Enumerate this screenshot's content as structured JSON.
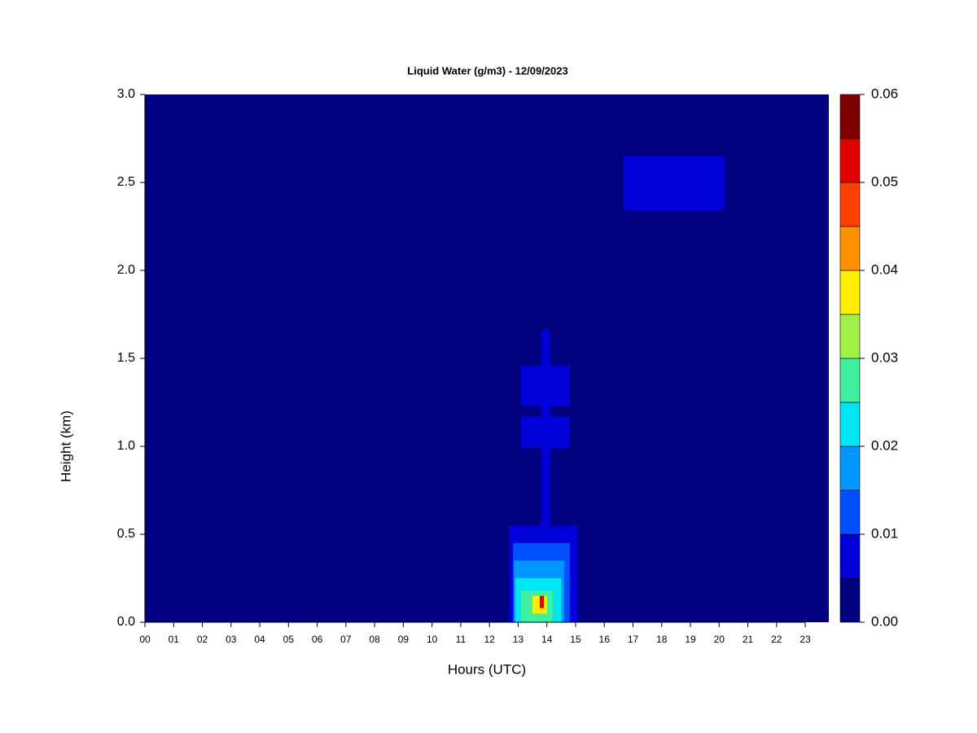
{
  "chart_data": {
    "type": "heatmap",
    "title": "Liquid Water (g/m3) - 12/09/2023",
    "xlabel": "Hours (UTC)",
    "ylabel": "Height (km)",
    "xlim": [
      0,
      23.82
    ],
    "ylim": [
      0,
      3
    ],
    "xticks": [
      {
        "value": 0,
        "label": "00"
      },
      {
        "value": 1,
        "label": "01"
      },
      {
        "value": 2,
        "label": "02"
      },
      {
        "value": 3,
        "label": "03"
      },
      {
        "value": 4,
        "label": "04"
      },
      {
        "value": 5,
        "label": "05"
      },
      {
        "value": 6,
        "label": "06"
      },
      {
        "value": 7,
        "label": "07"
      },
      {
        "value": 8,
        "label": "08"
      },
      {
        "value": 9,
        "label": "09"
      },
      {
        "value": 10,
        "label": "10"
      },
      {
        "value": 11,
        "label": "11"
      },
      {
        "value": 12,
        "label": "12"
      },
      {
        "value": 13,
        "label": "13"
      },
      {
        "value": 14,
        "label": "14"
      },
      {
        "value": 15,
        "label": "15"
      },
      {
        "value": 16,
        "label": "16"
      },
      {
        "value": 17,
        "label": "17"
      },
      {
        "value": 18,
        "label": "18"
      },
      {
        "value": 19,
        "label": "19"
      },
      {
        "value": 20,
        "label": "20"
      },
      {
        "value": 21,
        "label": "21"
      },
      {
        "value": 22,
        "label": "22"
      },
      {
        "value": 23,
        "label": "23"
      }
    ],
    "yticks": [
      {
        "value": 0,
        "label": "0.0"
      },
      0.5,
      {
        "value": 1,
        "label": "1.0"
      },
      1.5,
      {
        "value": 2,
        "label": "2.0"
      },
      2.5,
      {
        "value": 3,
        "label": "3.0"
      }
    ],
    "levels": [
      0,
      0.005,
      0.01,
      0.015,
      0.02,
      0.025,
      0.03,
      0.035,
      0.04,
      0.045,
      0.05,
      0.055,
      0.06
    ],
    "colors": [
      "#000080",
      "#0000d8",
      "#0050ff",
      "#0096ff",
      "#00e6f0",
      "#40f0a0",
      "#a0f048",
      "#ffee00",
      "#ff9000",
      "#ff4000",
      "#e00000",
      "#800000"
    ],
    "cticks": [
      {
        "value": 0,
        "label": "0.00"
      },
      {
        "value": 0.01,
        "label": "0.01"
      },
      {
        "value": 0.02,
        "label": "0.02"
      },
      {
        "value": 0.03,
        "label": "0.03"
      },
      {
        "value": 0.04,
        "label": "0.04"
      },
      {
        "value": 0.05,
        "label": "0.05"
      },
      {
        "value": 0.06,
        "label": "0.06"
      }
    ],
    "background_value": 0,
    "patches": [
      {
        "x": [
          16.68,
          20.19
        ],
        "y": [
          2.34,
          2.65
        ],
        "value": 0.007
      },
      {
        "x": [
          13.1,
          14.8
        ],
        "y": [
          1.23,
          1.46
        ],
        "value": 0.007
      },
      {
        "x": [
          13.1,
          14.8
        ],
        "y": [
          0.99,
          1.17
        ],
        "value": 0.007
      },
      {
        "x": [
          13.8,
          14.1
        ],
        "y": [
          0,
          1.66
        ],
        "value": 0.007
      },
      {
        "x": [
          12.68,
          15.09
        ],
        "y": [
          0,
          0.55
        ],
        "value": 0.007
      },
      {
        "x": [
          12.82,
          14.8
        ],
        "y": [
          0,
          0.45
        ],
        "value": 0.012
      },
      {
        "x": [
          12.85,
          14.6
        ],
        "y": [
          0,
          0.35
        ],
        "value": 0.017
      },
      {
        "x": [
          12.9,
          14.5
        ],
        "y": [
          0,
          0.25
        ],
        "value": 0.022
      },
      {
        "x": [
          13.1,
          14.2
        ],
        "y": [
          0,
          0.18
        ],
        "value": 0.027
      },
      {
        "x": [
          13.5,
          14.0
        ],
        "y": [
          0.05,
          0.15
        ],
        "value": 0.037
      },
      {
        "x": [
          13.75,
          13.9
        ],
        "y": [
          0.08,
          0.15
        ],
        "value": 0.052
      }
    ]
  }
}
